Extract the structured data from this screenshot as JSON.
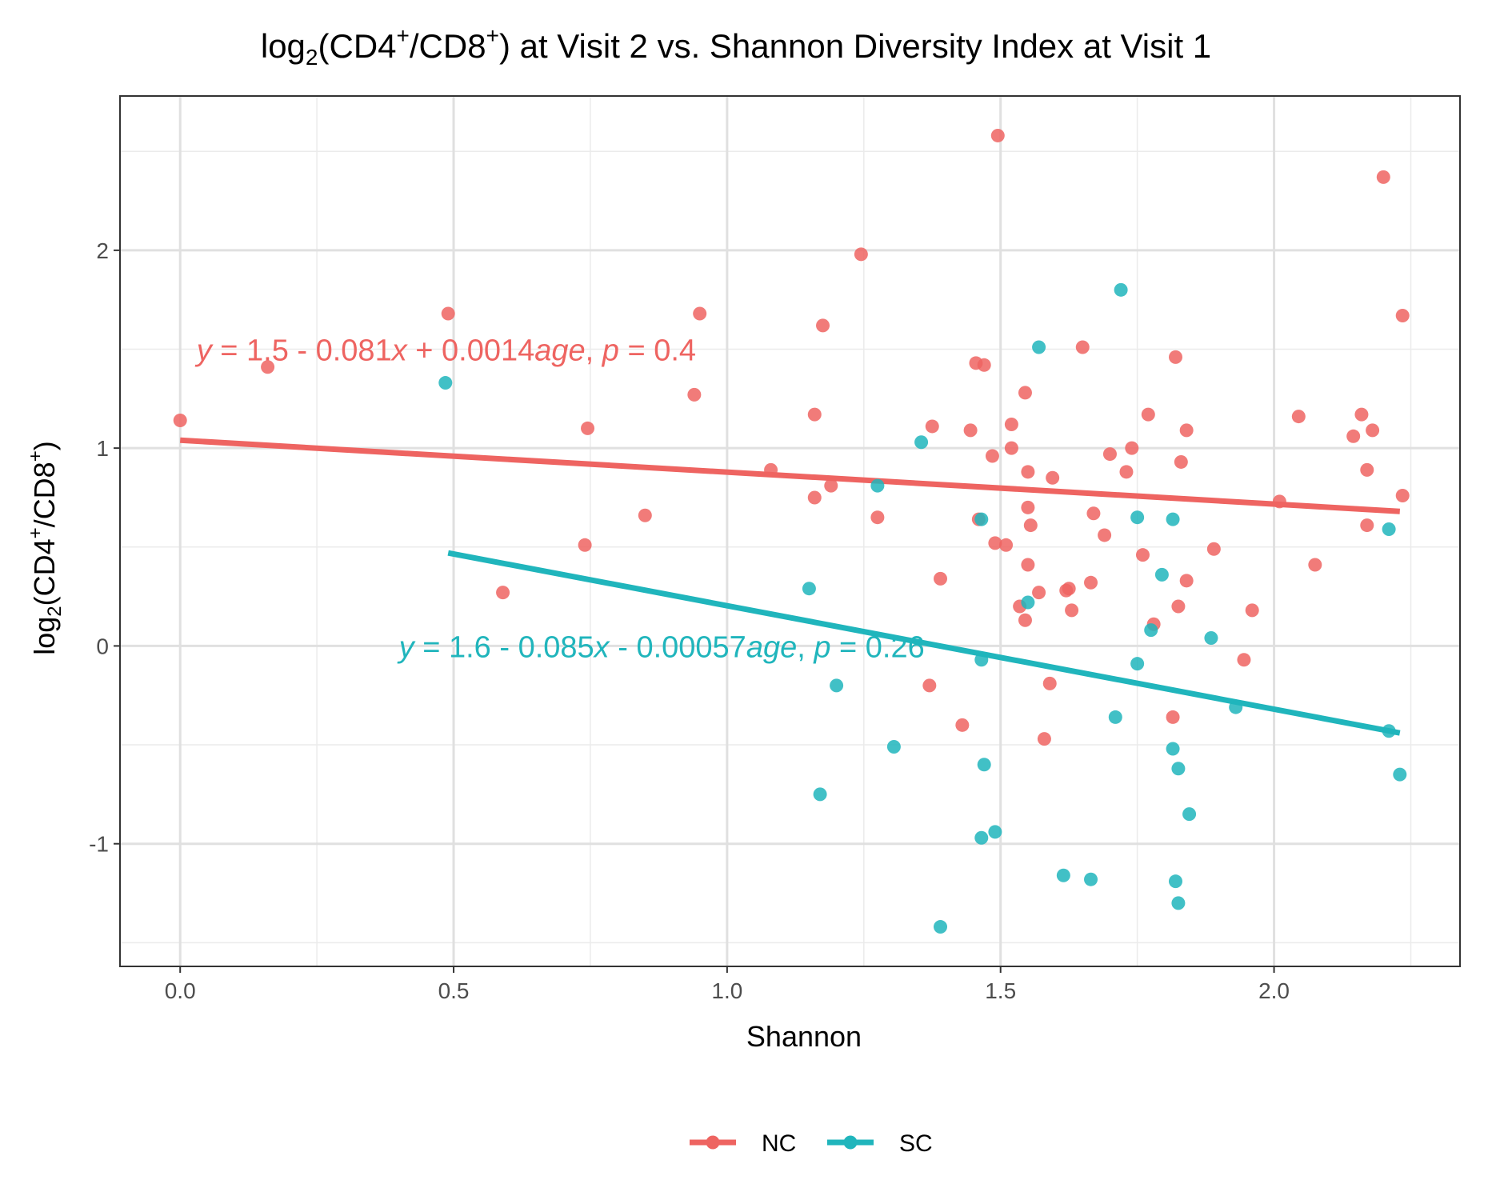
{
  "chart_data": {
    "type": "scatter",
    "title": {
      "lead": "log",
      "lead_sub": "2",
      "paren_open": "(CD4",
      "sup1": "+",
      "slash": "/CD8",
      "sup2": "+",
      "tail": ") at Visit 2 vs. Shannon Diversity Index at Visit 1"
    },
    "xlabel": "Shannon",
    "ylabel": {
      "lead": "log",
      "lead_sub": "2",
      "paren_open": "(CD4",
      "sup1": "+",
      "slash": "/CD8",
      "sup2": "+",
      "tail": ")"
    },
    "xlim": [
      -0.11,
      2.34
    ],
    "ylim": [
      -1.62,
      2.78
    ],
    "x_ticks": [
      0.0,
      0.5,
      1.0,
      1.5,
      2.0
    ],
    "x_tick_labels": [
      "0.0",
      "0.5",
      "1.0",
      "1.5",
      "2.0"
    ],
    "y_ticks": [
      -1,
      0,
      1,
      2
    ],
    "y_tick_labels": [
      "-1",
      "0",
      "1",
      "2"
    ],
    "grid": true,
    "legend_position": "bottom",
    "series": [
      {
        "name": "NC",
        "color": "#EE6461",
        "fit": {
          "x": [
            0.0,
            2.23
          ],
          "y": [
            1.04,
            0.68
          ]
        },
        "equation": {
          "position": [
            0.03,
            1.5
          ],
          "parts": [
            {
              "t": "y",
              "i": true
            },
            {
              "t": " = 1.5 - 0.081",
              "i": false
            },
            {
              "t": "x",
              "i": true
            },
            {
              "t": " + 0.0014",
              "i": false
            },
            {
              "t": "age",
              "i": true
            },
            {
              "t": ", ",
              "i": false
            },
            {
              "t": "p",
              "i": true
            },
            {
              "t": " = 0.4",
              "i": false
            }
          ]
        },
        "points": [
          [
            0.0,
            1.14
          ],
          [
            0.16,
            1.41
          ],
          [
            0.49,
            1.68
          ],
          [
            0.59,
            0.27
          ],
          [
            0.74,
            0.51
          ],
          [
            0.745,
            1.1
          ],
          [
            0.85,
            0.66
          ],
          [
            0.94,
            1.27
          ],
          [
            0.95,
            1.68
          ],
          [
            1.08,
            0.89
          ],
          [
            1.16,
            1.17
          ],
          [
            1.16,
            0.75
          ],
          [
            1.175,
            1.62
          ],
          [
            1.19,
            0.81
          ],
          [
            1.245,
            1.98
          ],
          [
            1.275,
            0.65
          ],
          [
            1.37,
            -0.2
          ],
          [
            1.375,
            1.11
          ],
          [
            1.39,
            0.34
          ],
          [
            1.43,
            -0.4
          ],
          [
            1.445,
            1.09
          ],
          [
            1.455,
            1.43
          ],
          [
            1.46,
            0.64
          ],
          [
            1.47,
            1.42
          ],
          [
            1.485,
            0.96
          ],
          [
            1.49,
            0.52
          ],
          [
            1.495,
            2.58
          ],
          [
            1.51,
            0.51
          ],
          [
            1.52,
            1.12
          ],
          [
            1.52,
            1.0
          ],
          [
            1.535,
            0.2
          ],
          [
            1.545,
            0.13
          ],
          [
            1.545,
            1.28
          ],
          [
            1.55,
            0.88
          ],
          [
            1.55,
            0.7
          ],
          [
            1.55,
            0.41
          ],
          [
            1.555,
            0.61
          ],
          [
            1.57,
            0.27
          ],
          [
            1.58,
            -0.47
          ],
          [
            1.59,
            -0.19
          ],
          [
            1.595,
            0.85
          ],
          [
            1.62,
            0.28
          ],
          [
            1.625,
            0.29
          ],
          [
            1.63,
            0.18
          ],
          [
            1.65,
            1.51
          ],
          [
            1.665,
            0.32
          ],
          [
            1.67,
            0.67
          ],
          [
            1.69,
            0.56
          ],
          [
            1.7,
            0.97
          ],
          [
            1.73,
            0.88
          ],
          [
            1.74,
            1.0
          ],
          [
            1.76,
            0.46
          ],
          [
            1.77,
            1.17
          ],
          [
            1.78,
            0.11
          ],
          [
            1.815,
            -0.36
          ],
          [
            1.82,
            1.46
          ],
          [
            1.825,
            0.2
          ],
          [
            1.83,
            0.93
          ],
          [
            1.84,
            1.09
          ],
          [
            1.84,
            0.33
          ],
          [
            1.89,
            0.49
          ],
          [
            1.945,
            -0.07
          ],
          [
            1.96,
            0.18
          ],
          [
            2.01,
            0.73
          ],
          [
            2.045,
            1.16
          ],
          [
            2.075,
            0.41
          ],
          [
            2.145,
            1.06
          ],
          [
            2.16,
            1.17
          ],
          [
            2.17,
            0.89
          ],
          [
            2.17,
            0.61
          ],
          [
            2.18,
            1.09
          ],
          [
            2.2,
            2.37
          ],
          [
            2.235,
            1.67
          ],
          [
            2.235,
            0.76
          ]
        ]
      },
      {
        "name": "SC",
        "color": "#20B5BC",
        "fit": {
          "x": [
            0.49,
            2.23
          ],
          "y": [
            0.47,
            -0.44
          ]
        },
        "equation": {
          "position": [
            0.4,
            0.0
          ],
          "parts": [
            {
              "t": "y",
              "i": true
            },
            {
              "t": " = 1.6 - 0.085",
              "i": false
            },
            {
              "t": "x",
              "i": true
            },
            {
              "t": " - 0.00057",
              "i": false
            },
            {
              "t": "age",
              "i": true
            },
            {
              "t": ", ",
              "i": false
            },
            {
              "t": "p",
              "i": true
            },
            {
              "t": " = 0.26",
              "i": false
            }
          ]
        },
        "points": [
          [
            0.485,
            1.33
          ],
          [
            1.15,
            0.29
          ],
          [
            1.17,
            -0.75
          ],
          [
            1.2,
            -0.2
          ],
          [
            1.275,
            0.81
          ],
          [
            1.305,
            -0.51
          ],
          [
            1.355,
            1.03
          ],
          [
            1.39,
            -1.42
          ],
          [
            1.465,
            0.64
          ],
          [
            1.465,
            -0.07
          ],
          [
            1.465,
            -0.97
          ],
          [
            1.47,
            -0.6
          ],
          [
            1.49,
            -0.94
          ],
          [
            1.55,
            0.22
          ],
          [
            1.57,
            1.51
          ],
          [
            1.615,
            -1.16
          ],
          [
            1.665,
            -1.18
          ],
          [
            1.71,
            -0.36
          ],
          [
            1.72,
            1.8
          ],
          [
            1.75,
            0.65
          ],
          [
            1.75,
            -0.09
          ],
          [
            1.775,
            0.08
          ],
          [
            1.795,
            0.36
          ],
          [
            1.815,
            0.64
          ],
          [
            1.815,
            -0.52
          ],
          [
            1.82,
            -1.19
          ],
          [
            1.825,
            -1.3
          ],
          [
            1.825,
            -0.62
          ],
          [
            1.845,
            -0.85
          ],
          [
            1.885,
            0.04
          ],
          [
            1.93,
            -0.31
          ],
          [
            2.21,
            0.59
          ],
          [
            2.21,
            -0.43
          ],
          [
            2.23,
            -0.65
          ]
        ]
      }
    ]
  }
}
